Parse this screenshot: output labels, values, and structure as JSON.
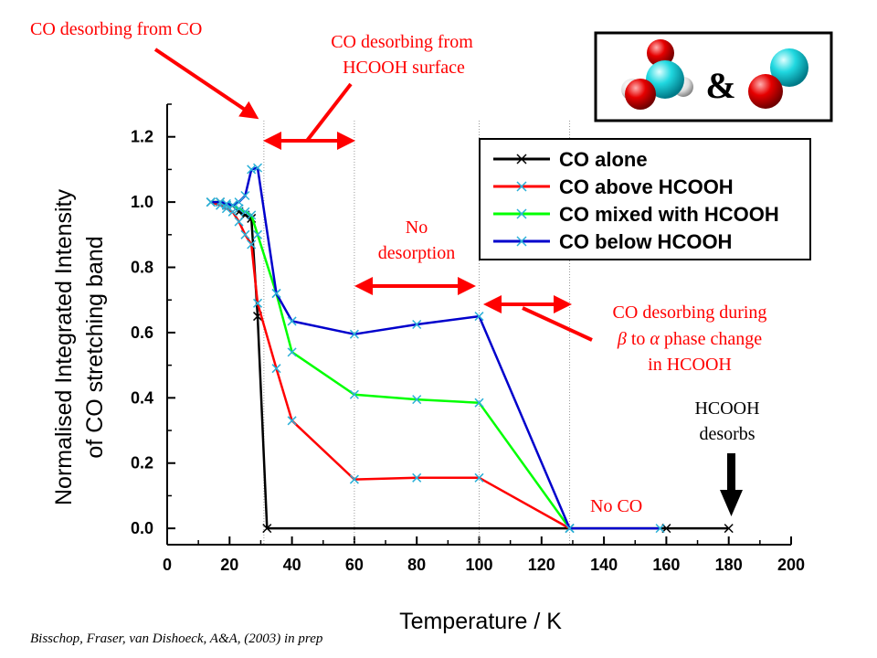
{
  "annotations": {
    "co_from_co": "CO desorbing from CO",
    "co_from_hcooh_1": "CO desorbing from",
    "co_from_hcooh_2": "HCOOH surface",
    "no_desorption_1": "No",
    "no_desorption_2": "desorption",
    "phase_change_1": "CO desorbing during",
    "phase_change_2_beta": "β",
    "phase_change_2_mid": " to ",
    "phase_change_2_alpha": "α",
    "phase_change_2_end": " phase change",
    "phase_change_3": "in HCOOH",
    "hcooh_desorbs_1": "HCOOH",
    "hcooh_desorbs_2": "desorbs",
    "no_co": "No CO",
    "ampersand": "&",
    "citation": "Bisschop, Fraser, van Dishoeck, A&A, (2003) in prep"
  },
  "chart_data": {
    "type": "line",
    "xlabel": "Temperature / K",
    "ylabel_line1": "Normalised Integrated Intensity",
    "ylabel_line2": "of CO stretching band",
    "xlim": [
      0,
      200
    ],
    "ylim": [
      -0.05,
      1.3
    ],
    "xticks": [
      0,
      20,
      40,
      60,
      80,
      100,
      120,
      140,
      160,
      180,
      200
    ],
    "yticks": [
      0.0,
      0.2,
      0.4,
      0.6,
      0.8,
      1.0,
      1.2
    ],
    "ytick_labels": [
      "0.0",
      "0.2",
      "0.4",
      "0.6",
      "0.8",
      "1.0",
      "1.2"
    ],
    "vlines": [
      31,
      60,
      100,
      129
    ],
    "legend_position": "top-right",
    "series": [
      {
        "name": "CO alone",
        "color": "#000000",
        "x": [
          14,
          17,
          19,
          21,
          23,
          25,
          27,
          29,
          32,
          129,
          160,
          180
        ],
        "y": [
          1.0,
          1.0,
          0.99,
          0.99,
          0.97,
          0.96,
          0.95,
          0.65,
          0.0,
          0.0,
          0.0,
          0.0
        ]
      },
      {
        "name": "CO above HCOOH",
        "color": "#ff0000",
        "x": [
          14,
          17,
          19,
          21,
          23,
          25,
          27,
          29,
          35,
          40,
          60,
          80,
          100,
          129
        ],
        "y": [
          1.0,
          0.99,
          0.98,
          0.97,
          0.94,
          0.9,
          0.87,
          0.69,
          0.49,
          0.33,
          0.15,
          0.155,
          0.155,
          0.0
        ]
      },
      {
        "name": "CO mixed with HCOOH",
        "color": "#00ff00",
        "x": [
          14,
          17,
          19,
          21,
          23,
          25,
          27,
          29,
          35,
          40,
          60,
          80,
          100,
          129
        ],
        "y": [
          1.0,
          1.0,
          0.99,
          0.99,
          0.98,
          0.97,
          0.96,
          0.9,
          0.72,
          0.54,
          0.41,
          0.395,
          0.385,
          0.0
        ]
      },
      {
        "name": "CO below HCOOH",
        "color": "#0000cc",
        "x": [
          14,
          17,
          19,
          21,
          23,
          25,
          27,
          29,
          35,
          40,
          60,
          80,
          100,
          129,
          158
        ],
        "y": [
          1.0,
          1.0,
          0.995,
          0.99,
          1.0,
          1.02,
          1.1,
          1.105,
          0.72,
          0.635,
          0.595,
          0.625,
          0.65,
          0.0,
          0.0
        ]
      }
    ]
  }
}
